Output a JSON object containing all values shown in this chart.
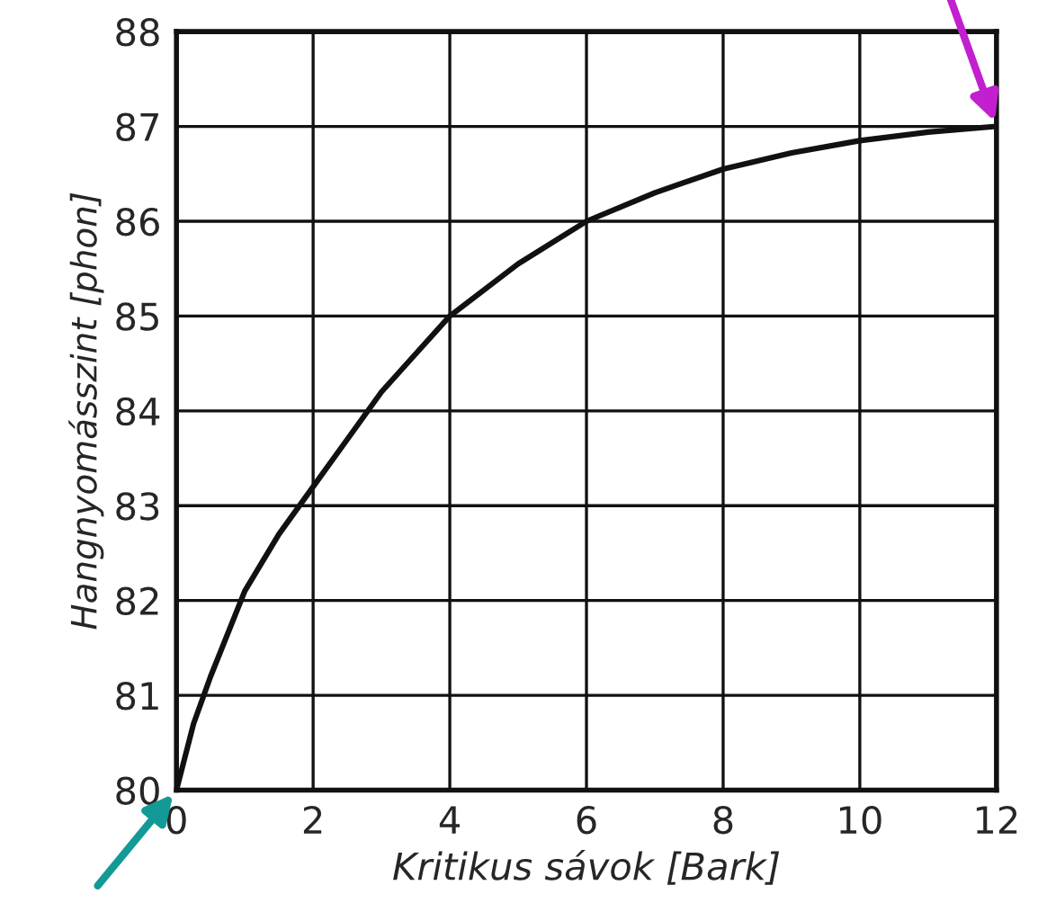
{
  "chart_data": {
    "type": "line",
    "xlabel": "Kritikus sávok [Bark]",
    "ylabel": "Hangnyomásszint [phon]",
    "x": [
      0,
      0.25,
      0.5,
      1,
      1.5,
      2,
      2.5,
      3,
      3.5,
      4,
      5,
      6,
      7,
      8,
      9,
      10,
      11,
      12
    ],
    "series": [
      {
        "color": "#111111",
        "values": [
          80,
          80.7,
          81.2,
          82.1,
          82.7,
          83.2,
          83.7,
          84.2,
          84.6,
          85.0,
          85.55,
          86.0,
          86.3,
          86.55,
          86.72,
          86.85,
          86.94,
          87.0
        ]
      }
    ],
    "xlim": [
      0,
      12
    ],
    "xticks": [
      0,
      2,
      4,
      6,
      8,
      10,
      12
    ],
    "ylim": [
      80,
      88
    ],
    "yticks": [
      80,
      81,
      82,
      83,
      84,
      85,
      86,
      87,
      88
    ],
    "grid": true,
    "legend": false,
    "marker": "none",
    "line_style": "solid"
  }
}
